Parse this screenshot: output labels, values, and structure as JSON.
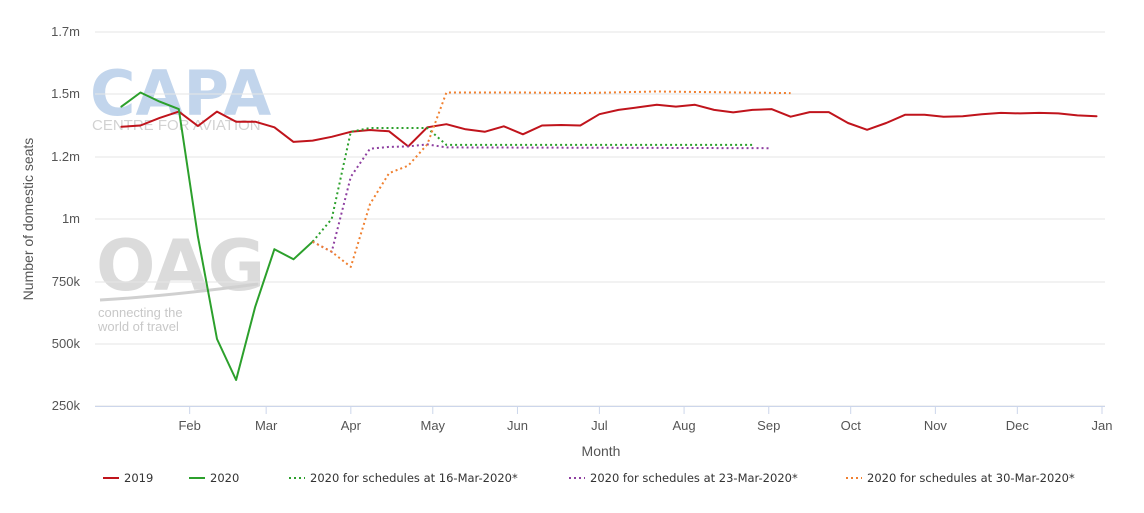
{
  "chart_data": {
    "type": "line",
    "title": "",
    "xlabel": "Month",
    "ylabel": "Number of domestic seats",
    "ylim": [
      250000,
      1700000
    ],
    "y_ticks": [
      250000,
      500000,
      750000,
      1000000,
      1250000,
      1500000,
      1700000
    ],
    "y_tick_labels": [
      "250k",
      "500k",
      "750k",
      "1m",
      "1.2m",
      "1.5m",
      "1.7m"
    ],
    "x_ticks": [
      "Feb",
      "Mar",
      "Apr",
      "May",
      "Jun",
      "Jul",
      "Aug",
      "Sep",
      "Oct",
      "Nov",
      "Dec",
      "Jan"
    ],
    "grid": true,
    "legend_position": "bottom",
    "series": [
      {
        "name": "2019",
        "style": "solid",
        "color": "#c0141c",
        "points": [
          [
            "2019-01-07",
            1370000
          ],
          [
            "2019-01-14",
            1375000
          ],
          [
            "2019-01-21",
            1405000
          ],
          [
            "2019-01-28",
            1430000
          ],
          [
            "2019-02-04",
            1373000
          ],
          [
            "2019-02-11",
            1430000
          ],
          [
            "2019-02-18",
            1390000
          ],
          [
            "2019-02-25",
            1390000
          ],
          [
            "2019-03-04",
            1368000
          ],
          [
            "2019-03-11",
            1310000
          ],
          [
            "2019-03-18",
            1315000
          ],
          [
            "2019-03-25",
            1330000
          ],
          [
            "2019-04-01",
            1350000
          ],
          [
            "2019-04-08",
            1357000
          ],
          [
            "2019-04-15",
            1352000
          ],
          [
            "2019-04-22",
            1292000
          ],
          [
            "2019-04-29",
            1368000
          ],
          [
            "2019-05-06",
            1380000
          ],
          [
            "2019-05-13",
            1360000
          ],
          [
            "2019-05-20",
            1350000
          ],
          [
            "2019-05-27",
            1372000
          ],
          [
            "2019-06-03",
            1340000
          ],
          [
            "2019-06-10",
            1375000
          ],
          [
            "2019-06-17",
            1377000
          ],
          [
            "2019-06-24",
            1375000
          ],
          [
            "2019-07-01",
            1420000
          ],
          [
            "2019-07-08",
            1437000
          ],
          [
            "2019-07-15",
            1447000
          ],
          [
            "2019-07-22",
            1457000
          ],
          [
            "2019-07-29",
            1450000
          ],
          [
            "2019-08-05",
            1457000
          ],
          [
            "2019-08-12",
            1437000
          ],
          [
            "2019-08-19",
            1427000
          ],
          [
            "2019-08-26",
            1437000
          ],
          [
            "2019-09-02",
            1440000
          ],
          [
            "2019-09-09",
            1410000
          ],
          [
            "2019-09-16",
            1428000
          ],
          [
            "2019-09-23",
            1428000
          ],
          [
            "2019-09-30",
            1385000
          ],
          [
            "2019-10-07",
            1358000
          ],
          [
            "2019-10-14",
            1385000
          ],
          [
            "2019-10-21",
            1418000
          ],
          [
            "2019-10-28",
            1418000
          ],
          [
            "2019-11-04",
            1410000
          ],
          [
            "2019-11-11",
            1412000
          ],
          [
            "2019-11-18",
            1420000
          ],
          [
            "2019-11-25",
            1425000
          ],
          [
            "2019-12-02",
            1423000
          ],
          [
            "2019-12-09",
            1425000
          ],
          [
            "2019-12-16",
            1423000
          ],
          [
            "2019-12-23",
            1415000
          ],
          [
            "2019-12-30",
            1412000
          ]
        ]
      },
      {
        "name": "2020",
        "style": "solid",
        "color": "#2ca02c",
        "points": [
          [
            "2019-01-07",
            1450000
          ],
          [
            "2019-01-14",
            1505000
          ],
          [
            "2019-01-21",
            1470000
          ],
          [
            "2019-01-28",
            1440000
          ],
          [
            "2019-02-04",
            930000
          ],
          [
            "2019-02-11",
            520000
          ],
          [
            "2019-02-18",
            355000
          ],
          [
            "2019-02-25",
            650000
          ],
          [
            "2019-03-04",
            880000
          ],
          [
            "2019-03-11",
            840000
          ],
          [
            "2019-03-18",
            910000
          ]
        ]
      },
      {
        "name": "2020 for schedules at 16-Mar-2020*",
        "style": "dotted",
        "color": "#2ca02c",
        "points": [
          [
            "2019-03-18",
            910000
          ],
          [
            "2019-03-25",
            1000000
          ],
          [
            "2019-04-01",
            1350000
          ],
          [
            "2019-04-08",
            1365000
          ],
          [
            "2019-04-15",
            1365000
          ],
          [
            "2019-04-22",
            1365000
          ],
          [
            "2019-04-29",
            1365000
          ],
          [
            "2019-05-06",
            1298000
          ],
          [
            "2019-08-26",
            1298000
          ]
        ]
      },
      {
        "name": "2020 for schedules at 23-Mar-2020*",
        "style": "dotted",
        "color": "#8e3fa0",
        "points": [
          [
            "2019-03-18",
            910000
          ],
          [
            "2019-03-25",
            870000
          ],
          [
            "2019-04-01",
            1170000
          ],
          [
            "2019-04-08",
            1283000
          ],
          [
            "2019-04-15",
            1290000
          ],
          [
            "2019-04-22",
            1292000
          ],
          [
            "2019-04-29",
            1300000
          ],
          [
            "2019-05-06",
            1288000
          ],
          [
            "2019-09-02",
            1285000
          ]
        ]
      },
      {
        "name": "2020 for schedules at 30-Mar-2020*",
        "style": "dotted",
        "color": "#f08030",
        "points": [
          [
            "2019-03-18",
            910000
          ],
          [
            "2019-03-25",
            870000
          ],
          [
            "2019-04-01",
            810000
          ],
          [
            "2019-04-08",
            1060000
          ],
          [
            "2019-04-15",
            1185000
          ],
          [
            "2019-04-22",
            1215000
          ],
          [
            "2019-04-29",
            1300000
          ],
          [
            "2019-05-06",
            1505000
          ],
          [
            "2019-06-03",
            1505000
          ],
          [
            "2019-06-24",
            1503000
          ],
          [
            "2019-07-22",
            1508000
          ],
          [
            "2019-09-09",
            1503000
          ]
        ]
      }
    ]
  },
  "watermarks": {
    "capa": "CAPA",
    "capa_sub": "CENTRE FOR AVIATION",
    "oag": "OAG",
    "oag_line1": "connecting the",
    "oag_line2": "world of travel"
  }
}
